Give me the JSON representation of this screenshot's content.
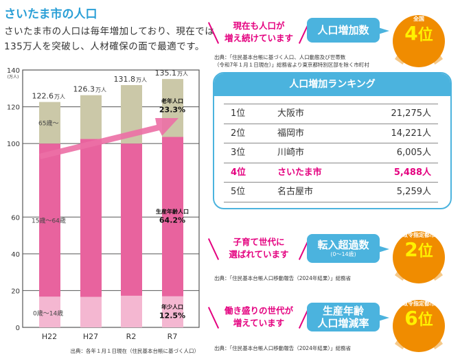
{
  "title": "さいたま市の人口",
  "lead": [
    "さいたま市の人口は毎年増加しており、現在では",
    "135万人を突破し、人材確保の面で最適です。"
  ],
  "chart_data": {
    "type": "bar",
    "stacked": true,
    "categories": [
      "H22",
      "H27",
      "R2",
      "R7"
    ],
    "series": [
      {
        "name": "0歳〜14歳",
        "values": [
          16.7,
          16.6,
          17.2,
          16.9
        ],
        "color": "#f4b7d1"
      },
      {
        "name": "15歳〜64歳",
        "values": [
          83.3,
          85.9,
          82.8,
          86.7
        ],
        "color": "#e8639e"
      },
      {
        "name": "65歳〜",
        "values": [
          22.6,
          23.8,
          31.8,
          31.5
        ],
        "color": "#cbc8a8"
      }
    ],
    "totals": [
      "122.6",
      "126.3",
      "131.8",
      "135.1"
    ],
    "total_unit": "万人",
    "ylim": [
      0,
      140
    ],
    "yticks": [
      "0",
      "20",
      "40",
      "60",
      "100",
      "120",
      "140"
    ],
    "yunit": "(万人)",
    "grid": true,
    "annotations": {
      "elder_label": "老年人口",
      "elder_pct": "23.3%",
      "working_label": "生産年齢人口",
      "working_pct": "64.2%",
      "youth_label": "年少人口",
      "youth_pct": "12.5%"
    },
    "source": "出典：各年１月１日現在（住民基本台帳に基づく人口）"
  },
  "sections": [
    {
      "catch": [
        "現在も人口が",
        "増え続けています"
      ],
      "bubble": [
        "人口増加数"
      ],
      "medal_label": "全国",
      "rank": "4",
      "rank_suffix": "位",
      "source": [
        "出典：「住民基本台帳に基づく人口、人口動態及び世帯数",
        "（令和7年１月１日現在）」総務省より東京都特別区部を除く市町村"
      ]
    },
    {
      "catch": [
        "子育て世代に",
        "選ばれています"
      ],
      "bubble": [
        "転入超過数",
        "(0〜14歳)"
      ],
      "medal_label": "政令指定都市",
      "rank": "2",
      "rank_suffix": "位",
      "source": [
        "出典：「住民基本台帳人口移動報告（2024年結果）」総務省"
      ]
    },
    {
      "catch": [
        "働き盛りの世代が",
        "増えています"
      ],
      "bubble": [
        "生産年齢",
        "人口増減率"
      ],
      "medal_label": "政令指定都市",
      "rank": "6",
      "rank_suffix": "位",
      "source": [
        "出典：「住民基本台帳人口移動報告（2024年結果）」総務省"
      ]
    }
  ],
  "ranking": {
    "title": "人口増加ランキング",
    "rows": [
      {
        "rank": "1位",
        "city": "大阪市",
        "value": "21,275人"
      },
      {
        "rank": "2位",
        "city": "福岡市",
        "value": "14,221人"
      },
      {
        "rank": "3位",
        "city": "川崎市",
        "value": "6,005人"
      },
      {
        "rank": "4位",
        "city": "さいたま市",
        "value": "5,488人",
        "highlight": true
      },
      {
        "rank": "5位",
        "city": "名古屋市",
        "value": "5,259人"
      }
    ]
  },
  "colors": {
    "accent_blue": "#4bb3de",
    "accent_pink": "#e4007f",
    "medal": "#f08c00",
    "rank_text": "#fff100"
  }
}
